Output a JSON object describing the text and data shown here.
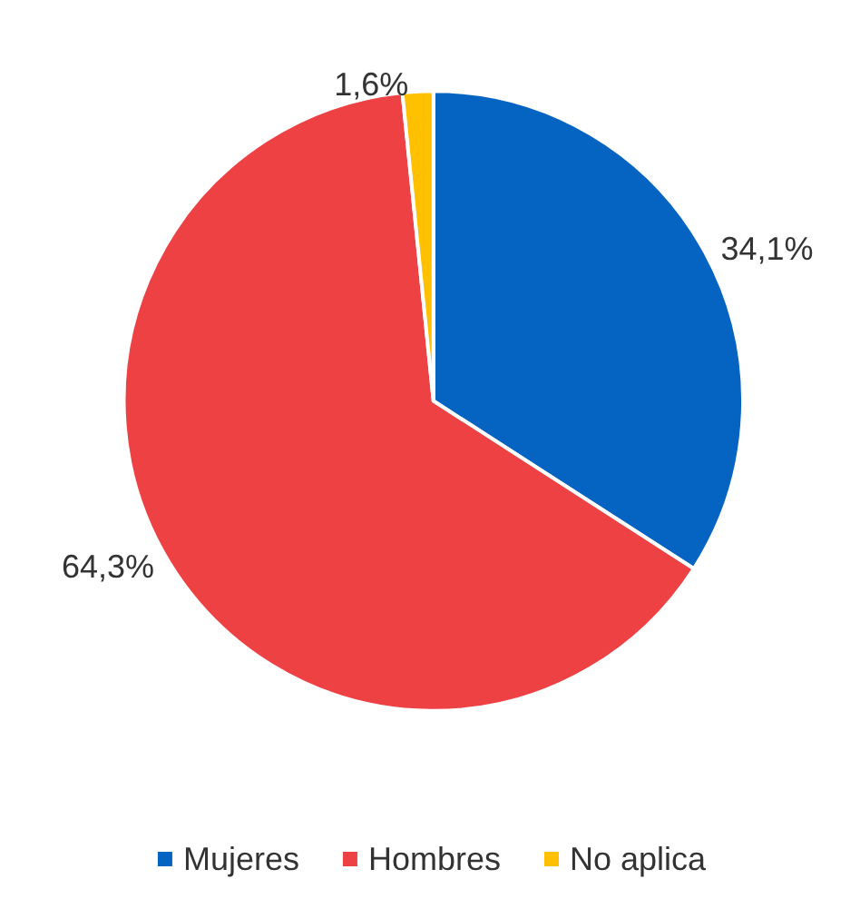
{
  "chart_data": {
    "type": "pie",
    "categories": [
      "Mujeres",
      "Hombres",
      "No aplica"
    ],
    "values": [
      34.1,
      64.3,
      1.6
    ],
    "colors": [
      "#0563c1",
      "#ee4144",
      "#ffc000"
    ],
    "value_labels": [
      "34,1%",
      "64,3%",
      "1,6%"
    ],
    "legend": "bottom"
  }
}
